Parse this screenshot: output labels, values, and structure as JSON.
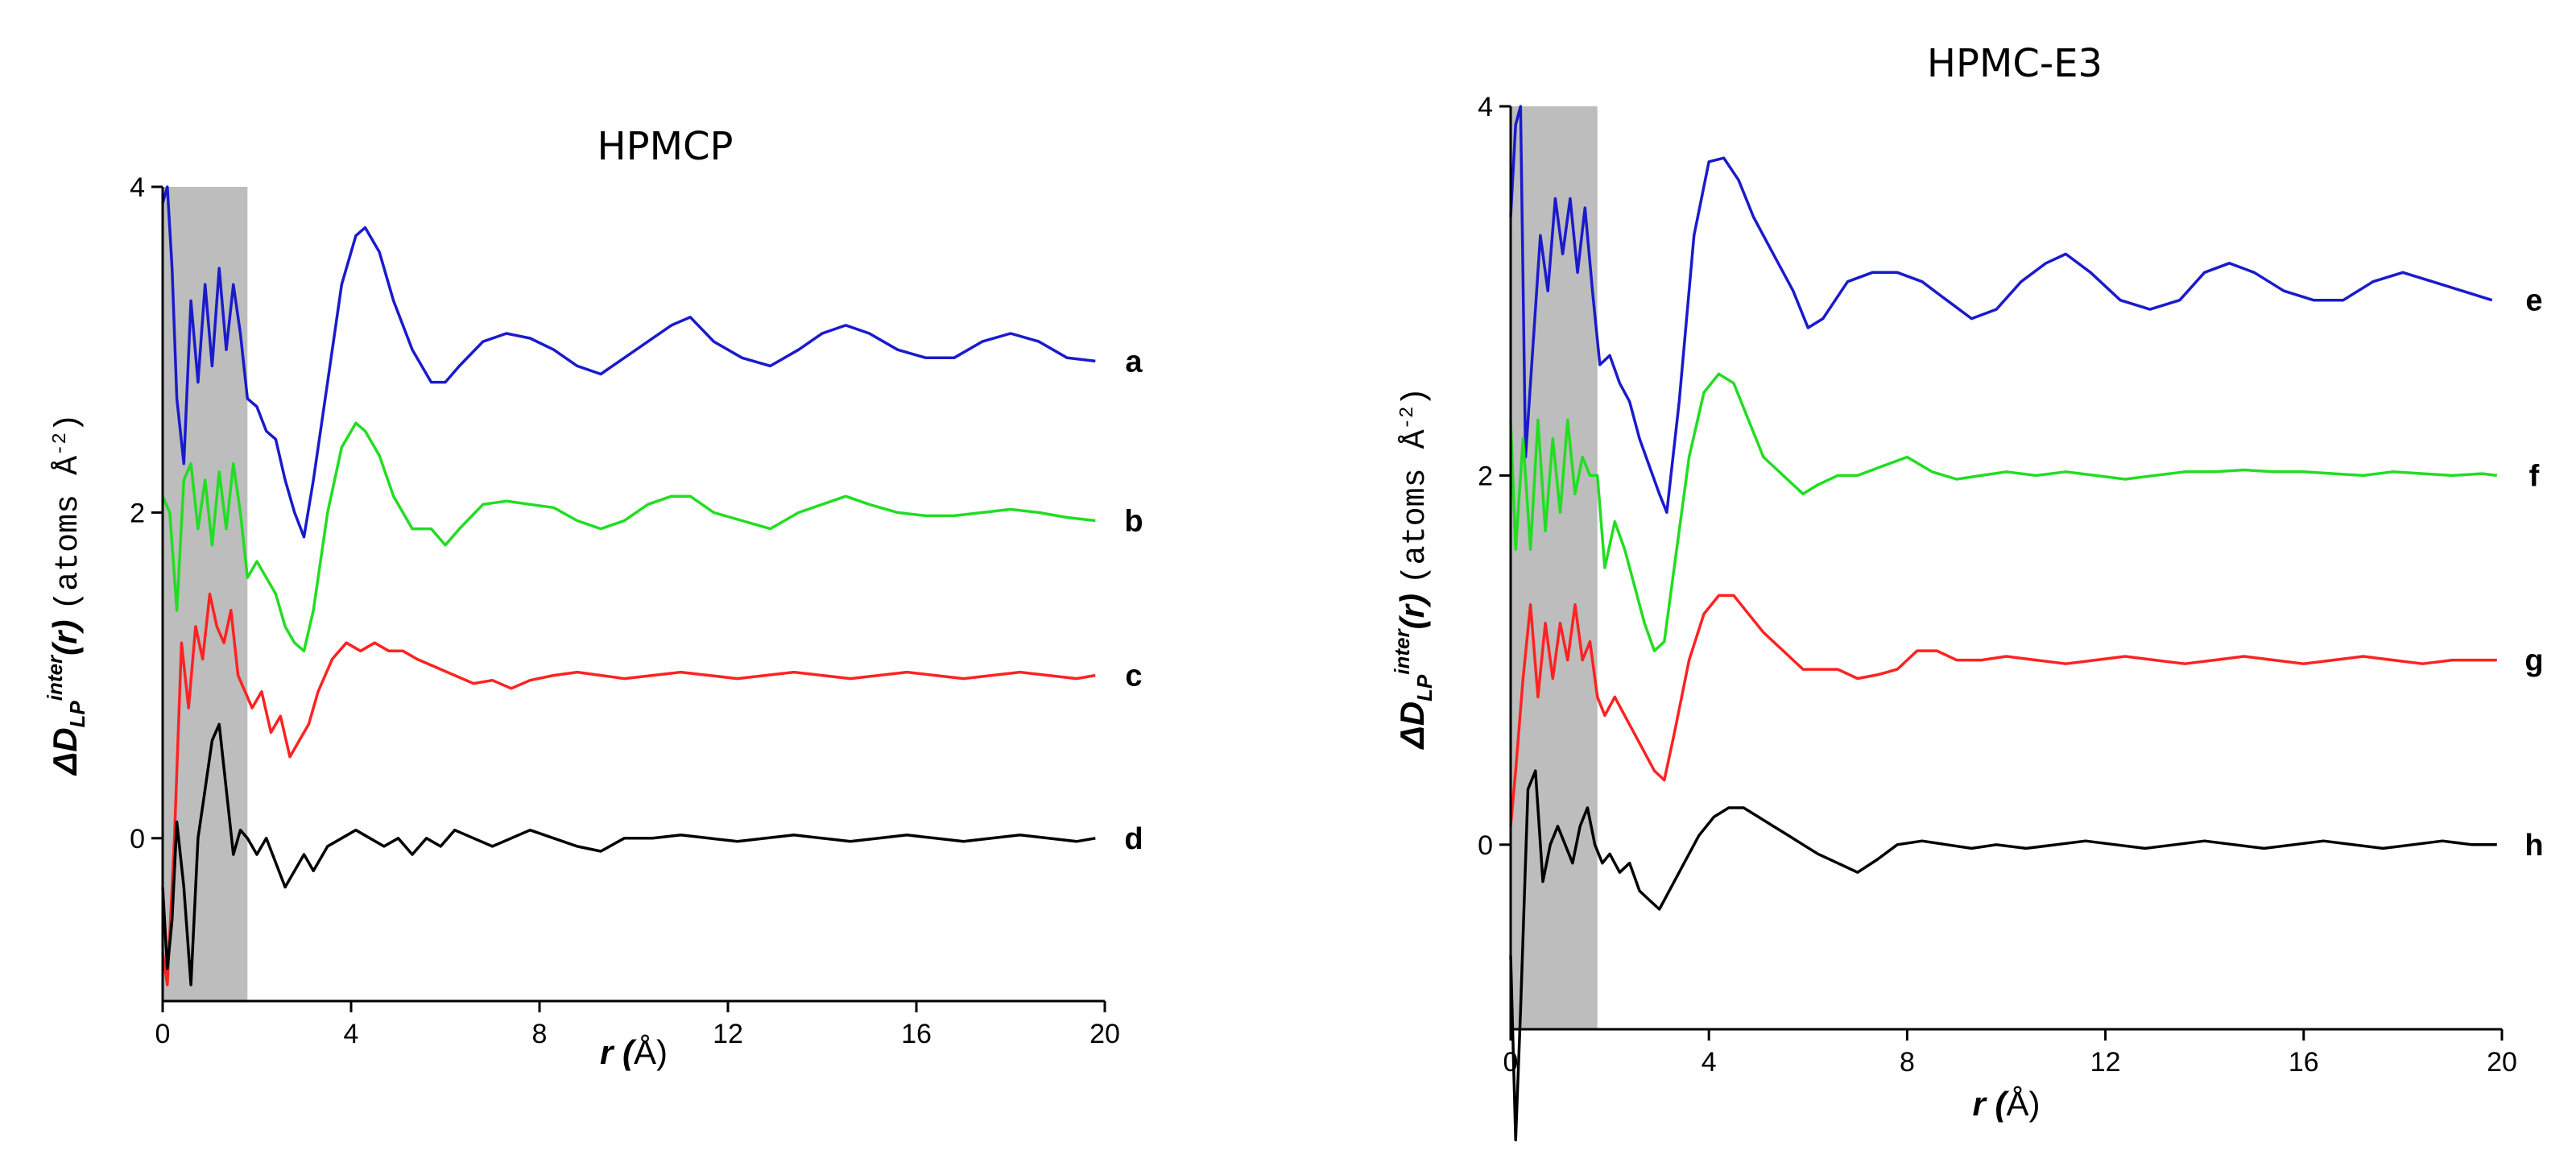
{
  "chart_data": [
    {
      "type": "line",
      "title": "HPMCP",
      "xlabel": "r (Å)",
      "xlabel_parts": {
        "main": "r (",
        "unit": "Å",
        "close": ")"
      },
      "ylabel_parts": {
        "d": "ΔD",
        "sub": "LP",
        "sup": "inter",
        "rr": "(r) ",
        "units": "(atoms Å",
        "exp": "-2",
        "close": ")"
      },
      "xlim": [
        0,
        20
      ],
      "ylim": [
        -1,
        4
      ],
      "xticks": [
        0,
        4,
        8,
        12,
        16,
        20
      ],
      "yticks": [
        0,
        2,
        4
      ],
      "shaded_region": [
        0,
        1.8
      ],
      "series": [
        {
          "name": "a",
          "color": "#1a1acc",
          "offset": 3,
          "x": [
            0,
            0.1,
            0.2,
            0.3,
            0.45,
            0.6,
            0.75,
            0.9,
            1.05,
            1.2,
            1.35,
            1.5,
            1.65,
            1.8,
            2.0,
            2.2,
            2.4,
            2.6,
            2.8,
            3.0,
            3.2,
            3.5,
            3.8,
            4.1,
            4.3,
            4.6,
            4.9,
            5.3,
            5.7,
            6.0,
            6.3,
            6.8,
            7.3,
            7.8,
            8.3,
            8.8,
            9.3,
            9.8,
            10.3,
            10.8,
            11.2,
            11.7,
            12.3,
            12.9,
            13.5,
            14.0,
            14.5,
            15.0,
            15.6,
            16.2,
            16.8,
            17.4,
            18.0,
            18.6,
            19.2,
            19.8
          ],
          "y": [
            0.9,
            1.0,
            0.5,
            -0.3,
            -0.7,
            0.3,
            -0.2,
            0.4,
            -0.1,
            0.5,
            0.0,
            0.4,
            0.1,
            -0.3,
            -0.35,
            -0.5,
            -0.55,
            -0.8,
            -1.0,
            -1.15,
            -0.8,
            -0.2,
            0.4,
            0.7,
            0.75,
            0.6,
            0.3,
            0.0,
            -0.2,
            -0.2,
            -0.1,
            0.05,
            0.1,
            0.07,
            0.0,
            -0.1,
            -0.15,
            -0.05,
            0.05,
            0.15,
            0.2,
            0.05,
            -0.05,
            -0.1,
            0.0,
            0.1,
            0.15,
            0.1,
            0.0,
            -0.05,
            -0.05,
            0.05,
            0.1,
            0.05,
            -0.05,
            -0.07
          ]
        },
        {
          "name": "b",
          "color": "#22dd22",
          "offset": 2,
          "x": [
            0,
            0.15,
            0.3,
            0.45,
            0.6,
            0.75,
            0.9,
            1.05,
            1.2,
            1.35,
            1.5,
            1.65,
            1.8,
            2.0,
            2.2,
            2.4,
            2.6,
            2.8,
            3.0,
            3.2,
            3.5,
            3.8,
            4.1,
            4.3,
            4.6,
            4.9,
            5.3,
            5.7,
            6.0,
            6.3,
            6.8,
            7.3,
            7.8,
            8.3,
            8.8,
            9.3,
            9.8,
            10.3,
            10.8,
            11.2,
            11.7,
            12.3,
            12.9,
            13.5,
            14.0,
            14.5,
            15.0,
            15.6,
            16.2,
            16.8,
            17.4,
            18.0,
            18.6,
            19.2,
            19.8
          ],
          "y": [
            0.1,
            0.0,
            -0.6,
            0.2,
            0.3,
            -0.1,
            0.2,
            -0.2,
            0.25,
            -0.1,
            0.3,
            0.0,
            -0.4,
            -0.3,
            -0.4,
            -0.5,
            -0.7,
            -0.8,
            -0.85,
            -0.6,
            0.0,
            0.4,
            0.55,
            0.5,
            0.35,
            0.1,
            -0.1,
            -0.1,
            -0.2,
            -0.1,
            0.05,
            0.07,
            0.05,
            0.03,
            -0.05,
            -0.1,
            -0.05,
            0.05,
            0.1,
            0.1,
            0.0,
            -0.05,
            -0.1,
            0.0,
            0.05,
            0.1,
            0.05,
            0.0,
            -0.02,
            -0.02,
            0.0,
            0.02,
            0.0,
            -0.03,
            -0.05
          ]
        },
        {
          "name": "c",
          "color": "#ff2222",
          "offset": 1,
          "x": [
            0,
            0.1,
            0.25,
            0.4,
            0.55,
            0.7,
            0.85,
            1.0,
            1.15,
            1.3,
            1.45,
            1.6,
            1.75,
            1.9,
            2.1,
            2.3,
            2.5,
            2.7,
            2.9,
            3.1,
            3.3,
            3.6,
            3.9,
            4.2,
            4.5,
            4.8,
            5.1,
            5.4,
            5.8,
            6.2,
            6.6,
            7.0,
            7.4,
            7.8,
            8.3,
            8.8,
            9.3,
            9.8,
            10.4,
            11.0,
            11.6,
            12.2,
            12.8,
            13.4,
            14.0,
            14.6,
            15.2,
            15.8,
            16.4,
            17.0,
            17.6,
            18.2,
            18.8,
            19.4,
            19.8
          ],
          "y": [
            -1.7,
            -1.9,
            -1.0,
            0.2,
            -0.2,
            0.3,
            0.1,
            0.5,
            0.3,
            0.2,
            0.4,
            0.0,
            -0.1,
            -0.2,
            -0.1,
            -0.35,
            -0.25,
            -0.5,
            -0.4,
            -0.3,
            -0.1,
            0.1,
            0.2,
            0.15,
            0.2,
            0.15,
            0.15,
            0.1,
            0.05,
            0.0,
            -0.05,
            -0.03,
            -0.08,
            -0.03,
            0.0,
            0.02,
            0.0,
            -0.02,
            0.0,
            0.02,
            0.0,
            -0.02,
            0.0,
            0.02,
            0.0,
            -0.02,
            0.0,
            0.02,
            0.0,
            -0.02,
            0.0,
            0.02,
            0.0,
            -0.02,
            0.0
          ]
        },
        {
          "name": "d",
          "color": "#000000",
          "offset": 0,
          "x": [
            0,
            0.1,
            0.2,
            0.3,
            0.45,
            0.6,
            0.75,
            0.9,
            1.05,
            1.2,
            1.35,
            1.5,
            1.65,
            1.8,
            2.0,
            2.2,
            2.4,
            2.6,
            2.8,
            3.0,
            3.2,
            3.5,
            3.8,
            4.1,
            4.4,
            4.7,
            5.0,
            5.3,
            5.6,
            5.9,
            6.2,
            6.6,
            7.0,
            7.4,
            7.8,
            8.3,
            8.8,
            9.3,
            9.8,
            10.4,
            11.0,
            11.6,
            12.2,
            12.8,
            13.4,
            14.0,
            14.6,
            15.2,
            15.8,
            16.4,
            17.0,
            17.6,
            18.2,
            18.8,
            19.4,
            19.8
          ],
          "y": [
            -0.3,
            -0.8,
            -0.5,
            0.1,
            -0.3,
            -0.9,
            0.0,
            0.3,
            0.6,
            0.7,
            0.3,
            -0.1,
            0.05,
            0.0,
            -0.1,
            0.0,
            -0.15,
            -0.3,
            -0.2,
            -0.1,
            -0.2,
            -0.05,
            0.0,
            0.05,
            0.0,
            -0.05,
            0.0,
            -0.1,
            0.0,
            -0.05,
            0.05,
            0.0,
            -0.05,
            0.0,
            0.05,
            0.0,
            -0.05,
            -0.08,
            0.0,
            0.0,
            0.02,
            0.0,
            -0.02,
            0.0,
            0.02,
            0.0,
            -0.02,
            0.0,
            0.02,
            0.0,
            -0.02,
            0.0,
            0.02,
            0.0,
            -0.02,
            0.0
          ]
        }
      ]
    },
    {
      "type": "line",
      "title": "HPMC-E3",
      "xlabel": "r (Å)",
      "xlabel_parts": {
        "main": "r (",
        "unit": "Å",
        "close": ")"
      },
      "ylabel_parts": {
        "d": "ΔD",
        "sub": "LP",
        "sup": "inter",
        "rr": "(r) ",
        "units": "(atoms Å",
        "exp": "-2",
        "close": ")"
      },
      "xlim": [
        0,
        20
      ],
      "ylim": [
        -1,
        4
      ],
      "xticks": [
        0,
        4,
        8,
        12,
        16,
        20
      ],
      "yticks": [
        0,
        2,
        4
      ],
      "shaded_region": [
        0,
        1.75
      ],
      "series": [
        {
          "name": "e",
          "color": "#1a1acc",
          "offset": 3,
          "x": [
            0,
            0.1,
            0.2,
            0.3,
            0.45,
            0.6,
            0.75,
            0.9,
            1.05,
            1.2,
            1.35,
            1.5,
            1.65,
            1.8,
            2.0,
            2.2,
            2.4,
            2.6,
            2.8,
            3.0,
            3.15,
            3.4,
            3.7,
            4.0,
            4.3,
            4.6,
            4.9,
            5.3,
            5.7,
            6.0,
            6.3,
            6.8,
            7.3,
            7.8,
            8.3,
            8.8,
            9.3,
            9.8,
            10.3,
            10.8,
            11.2,
            11.7,
            12.3,
            12.9,
            13.5,
            14.0,
            14.5,
            15.0,
            15.6,
            16.2,
            16.8,
            17.4,
            18.0,
            18.6,
            19.2,
            19.8
          ],
          "y": [
            0.4,
            0.9,
            1.0,
            -0.9,
            -0.3,
            0.3,
            0.0,
            0.5,
            0.2,
            0.5,
            0.1,
            0.45,
            0.0,
            -0.4,
            -0.35,
            -0.5,
            -0.6,
            -0.8,
            -0.95,
            -1.1,
            -1.2,
            -0.6,
            0.3,
            0.7,
            0.72,
            0.6,
            0.4,
            0.2,
            0.0,
            -0.2,
            -0.15,
            0.05,
            0.1,
            0.1,
            0.05,
            -0.05,
            -0.15,
            -0.1,
            0.05,
            0.15,
            0.2,
            0.1,
            -0.05,
            -0.1,
            -0.05,
            0.1,
            0.15,
            0.1,
            0.0,
            -0.05,
            -0.05,
            0.05,
            0.1,
            0.05,
            0.0,
            -0.05
          ]
        },
        {
          "name": "f",
          "color": "#22dd22",
          "offset": 2,
          "x": [
            0,
            0.1,
            0.25,
            0.4,
            0.55,
            0.7,
            0.85,
            1.0,
            1.15,
            1.3,
            1.45,
            1.6,
            1.75,
            1.9,
            2.1,
            2.3,
            2.5,
            2.7,
            2.9,
            3.1,
            3.3,
            3.6,
            3.9,
            4.2,
            4.5,
            4.8,
            5.1,
            5.5,
            5.9,
            6.2,
            6.6,
            7.0,
            7.5,
            8.0,
            8.5,
            9.0,
            9.5,
            10.0,
            10.6,
            11.2,
            11.8,
            12.4,
            13.0,
            13.6,
            14.2,
            14.8,
            15.4,
            16.0,
            16.6,
            17.2,
            17.8,
            18.4,
            19.0,
            19.6,
            19.9
          ],
          "y": [
            0.3,
            -0.4,
            0.2,
            -0.4,
            0.3,
            -0.3,
            0.2,
            -0.2,
            0.3,
            -0.1,
            0.1,
            0.0,
            0.0,
            -0.5,
            -0.25,
            -0.4,
            -0.6,
            -0.8,
            -0.95,
            -0.9,
            -0.5,
            0.1,
            0.45,
            0.55,
            0.5,
            0.3,
            0.1,
            0.0,
            -0.1,
            -0.05,
            0.0,
            0.0,
            0.05,
            0.1,
            0.02,
            -0.02,
            0.0,
            0.02,
            0.0,
            0.02,
            0.0,
            -0.02,
            0.0,
            0.02,
            0.02,
            0.03,
            0.02,
            0.02,
            0.01,
            0.0,
            0.02,
            0.01,
            0.0,
            0.01,
            0.0
          ]
        },
        {
          "name": "g",
          "color": "#ff2222",
          "offset": 1,
          "x": [
            0,
            0.1,
            0.25,
            0.4,
            0.55,
            0.7,
            0.85,
            1.0,
            1.15,
            1.3,
            1.45,
            1.6,
            1.75,
            1.9,
            2.1,
            2.3,
            2.5,
            2.7,
            2.9,
            3.1,
            3.3,
            3.6,
            3.9,
            4.2,
            4.5,
            4.8,
            5.1,
            5.5,
            5.9,
            6.2,
            6.6,
            7.0,
            7.4,
            7.8,
            8.2,
            8.6,
            9.0,
            9.5,
            10.0,
            10.6,
            11.2,
            11.8,
            12.4,
            13.0,
            13.6,
            14.2,
            14.8,
            15.4,
            16.0,
            16.6,
            17.2,
            17.8,
            18.4,
            19.0,
            19.6,
            19.9
          ],
          "y": [
            -0.9,
            -0.6,
            -0.1,
            0.3,
            -0.2,
            0.2,
            -0.1,
            0.2,
            0.0,
            0.3,
            0.0,
            0.1,
            -0.2,
            -0.3,
            -0.2,
            -0.3,
            -0.4,
            -0.5,
            -0.6,
            -0.65,
            -0.4,
            0.0,
            0.25,
            0.35,
            0.35,
            0.25,
            0.15,
            0.05,
            -0.05,
            -0.05,
            -0.05,
            -0.1,
            -0.08,
            -0.05,
            0.05,
            0.05,
            0.0,
            0.0,
            0.02,
            0.0,
            -0.02,
            0.0,
            0.02,
            0.0,
            -0.02,
            0.0,
            0.02,
            0.0,
            -0.02,
            0.0,
            0.02,
            0.0,
            -0.02,
            0.0,
            0.0,
            0.0
          ]
        },
        {
          "name": "h",
          "color": "#000000",
          "offset": 0,
          "x": [
            0,
            0.1,
            0.2,
            0.35,
            0.5,
            0.65,
            0.8,
            0.95,
            1.1,
            1.25,
            1.4,
            1.55,
            1.7,
            1.85,
            2.0,
            2.2,
            2.4,
            2.6,
            2.8,
            3.0,
            3.2,
            3.5,
            3.8,
            4.1,
            4.4,
            4.7,
            5.0,
            5.3,
            5.6,
            5.9,
            6.2,
            6.6,
            7.0,
            7.4,
            7.8,
            8.3,
            8.8,
            9.3,
            9.8,
            10.4,
            11.0,
            11.6,
            12.2,
            12.8,
            13.4,
            14.0,
            14.6,
            15.2,
            15.8,
            16.4,
            17.0,
            17.6,
            18.2,
            18.8,
            19.4,
            19.9
          ],
          "y": [
            -0.6,
            -1.6,
            -0.9,
            0.3,
            0.4,
            -0.2,
            0.0,
            0.1,
            0.0,
            -0.1,
            0.1,
            0.2,
            0.0,
            -0.1,
            -0.05,
            -0.15,
            -0.1,
            -0.25,
            -0.3,
            -0.35,
            -0.25,
            -0.1,
            0.05,
            0.15,
            0.2,
            0.2,
            0.15,
            0.1,
            0.05,
            0.0,
            -0.05,
            -0.1,
            -0.15,
            -0.08,
            0.0,
            0.02,
            0.0,
            -0.02,
            0.0,
            -0.02,
            0.0,
            0.02,
            0.0,
            -0.02,
            0.0,
            0.02,
            0.0,
            -0.02,
            0.0,
            0.02,
            0.0,
            -0.02,
            0.0,
            0.02,
            0.0,
            0.0
          ]
        }
      ]
    }
  ]
}
